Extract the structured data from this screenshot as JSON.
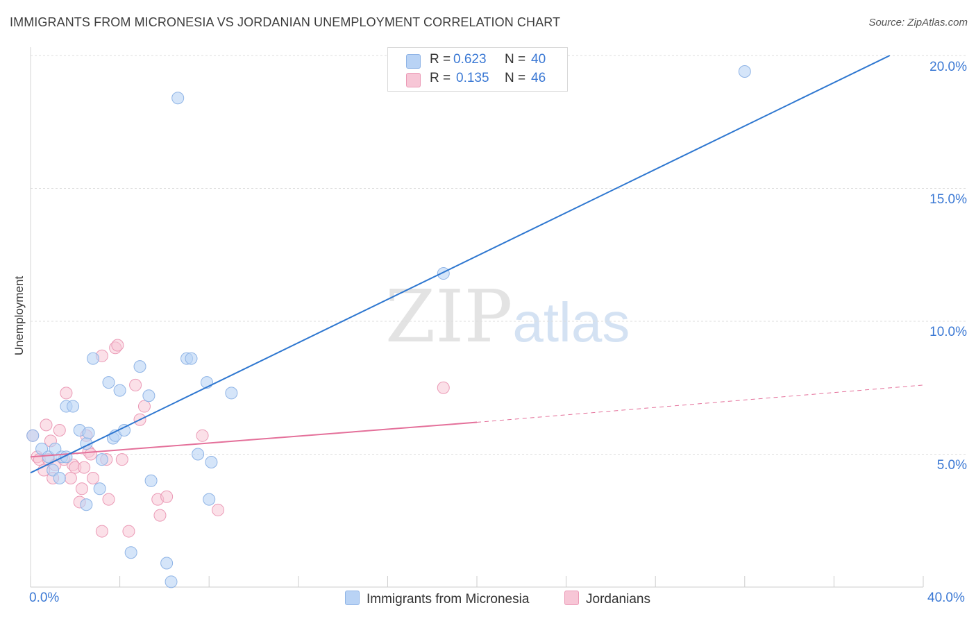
{
  "title": "IMMIGRANTS FROM MICRONESIA VS JORDANIAN UNEMPLOYMENT CORRELATION CHART",
  "source": "Source: ZipAtlas.com",
  "watermark": {
    "zip": "ZIP",
    "atlas": "atlas"
  },
  "colors": {
    "blue_fill": "#b9d3f5",
    "blue_stroke": "#8fb4e6",
    "blue_line": "#2e77d0",
    "pink_fill": "#f7c6d6",
    "pink_stroke": "#eb9ab6",
    "pink_line": "#e4709a",
    "axis_text": "#3a78d4",
    "grid": "#dddddd"
  },
  "legend": {
    "rows": [
      {
        "r_label": "R =",
        "r_value": "0.623",
        "n_label": "N =",
        "n_value": "40"
      },
      {
        "r_label": "R =",
        "r_value": "0.135",
        "n_label": "N =",
        "n_value": "46"
      }
    ]
  },
  "bottom_legend": {
    "series1": "Immigrants from Micronesia",
    "series2": "Jordanians"
  },
  "chart_data": {
    "type": "scatter",
    "title": "IMMIGRANTS FROM MICRONESIA VS JORDANIAN UNEMPLOYMENT CORRELATION CHART",
    "xlabel": "",
    "ylabel": "Unemployment",
    "xlim": [
      0,
      40
    ],
    "ylim": [
      0,
      20
    ],
    "x_tick_labels": [
      "0.0%",
      "40.0%"
    ],
    "y_ticks": [
      5,
      10,
      15,
      20
    ],
    "y_tick_labels": [
      "5.0%",
      "10.0%",
      "15.0%",
      "20.0%"
    ],
    "series": [
      {
        "name": "Immigrants from Micronesia",
        "r": 0.623,
        "n": 40,
        "trend": {
          "x": [
            0,
            38.5
          ],
          "y": [
            4.3,
            20.0
          ]
        },
        "points": [
          [
            0.1,
            5.7
          ],
          [
            0.5,
            5.2
          ],
          [
            0.8,
            4.9
          ],
          [
            1.0,
            4.4
          ],
          [
            1.1,
            5.2
          ],
          [
            1.3,
            4.1
          ],
          [
            1.4,
            4.9
          ],
          [
            1.6,
            4.9
          ],
          [
            1.6,
            6.8
          ],
          [
            1.9,
            6.8
          ],
          [
            2.2,
            5.9
          ],
          [
            2.5,
            5.4
          ],
          [
            2.5,
            3.1
          ],
          [
            2.6,
            5.8
          ],
          [
            2.8,
            8.6
          ],
          [
            3.1,
            3.7
          ],
          [
            3.2,
            4.8
          ],
          [
            3.5,
            7.7
          ],
          [
            3.7,
            5.6
          ],
          [
            3.8,
            5.7
          ],
          [
            4.0,
            7.4
          ],
          [
            4.2,
            5.9
          ],
          [
            4.5,
            1.3
          ],
          [
            4.9,
            8.3
          ],
          [
            5.3,
            7.2
          ],
          [
            5.4,
            4.0
          ],
          [
            6.1,
            0.9
          ],
          [
            6.3,
            0.2
          ],
          [
            6.6,
            18.4
          ],
          [
            7.0,
            8.6
          ],
          [
            7.2,
            8.6
          ],
          [
            7.5,
            5.0
          ],
          [
            7.9,
            7.7
          ],
          [
            8.0,
            3.3
          ],
          [
            8.1,
            4.7
          ],
          [
            9.0,
            7.3
          ],
          [
            18.5,
            11.8
          ],
          [
            32.0,
            19.4
          ]
        ]
      },
      {
        "name": "Jordanians",
        "r": 0.135,
        "n": 46,
        "trend": {
          "x": [
            0,
            20.0
          ],
          "y": [
            4.9,
            6.2
          ]
        },
        "trend_ext": {
          "x": [
            20.0,
            40.0
          ],
          "y": [
            6.2,
            7.6
          ]
        },
        "points": [
          [
            0.1,
            5.7
          ],
          [
            0.3,
            4.9
          ],
          [
            0.4,
            4.8
          ],
          [
            0.6,
            4.4
          ],
          [
            0.7,
            6.1
          ],
          [
            0.8,
            4.8
          ],
          [
            0.9,
            5.5
          ],
          [
            1.0,
            4.1
          ],
          [
            1.1,
            4.6
          ],
          [
            1.3,
            5.9
          ],
          [
            1.5,
            4.8
          ],
          [
            1.6,
            7.3
          ],
          [
            1.8,
            4.1
          ],
          [
            1.9,
            4.6
          ],
          [
            2.0,
            4.5
          ],
          [
            2.2,
            3.2
          ],
          [
            2.3,
            3.7
          ],
          [
            2.4,
            4.5
          ],
          [
            2.5,
            5.7
          ],
          [
            2.6,
            5.1
          ],
          [
            2.7,
            5.0
          ],
          [
            2.8,
            4.1
          ],
          [
            3.2,
            8.7
          ],
          [
            3.2,
            2.1
          ],
          [
            3.4,
            4.8
          ],
          [
            3.5,
            3.3
          ],
          [
            3.8,
            9.0
          ],
          [
            3.9,
            9.1
          ],
          [
            4.1,
            4.8
          ],
          [
            4.4,
            2.1
          ],
          [
            4.7,
            7.6
          ],
          [
            4.9,
            6.3
          ],
          [
            5.1,
            6.8
          ],
          [
            5.7,
            3.3
          ],
          [
            5.8,
            2.7
          ],
          [
            6.1,
            3.4
          ],
          [
            7.7,
            5.7
          ],
          [
            8.4,
            2.9
          ],
          [
            18.5,
            7.5
          ]
        ]
      }
    ]
  }
}
